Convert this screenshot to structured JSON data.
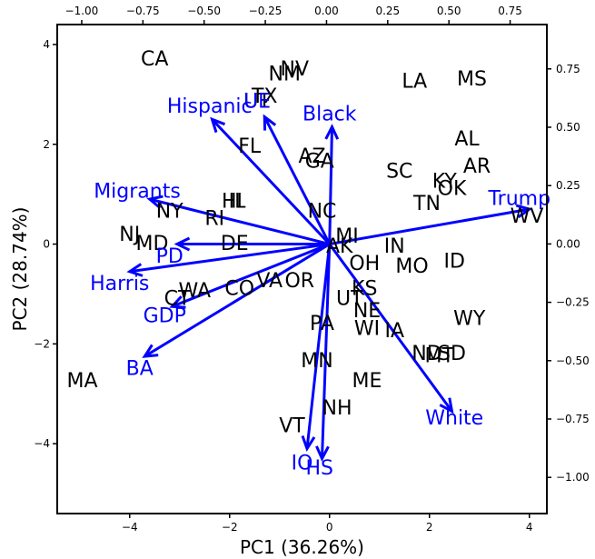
{
  "chart_data": {
    "type": "scatter",
    "subtype": "pca-biplot",
    "xlabel": "PC1  (36.26%)",
    "ylabel": "PC2  (28.74%)",
    "xlim": [
      -5.45,
      4.35
    ],
    "ylim": [
      -5.4,
      4.4
    ],
    "xticks": [
      -4,
      -2,
      0,
      2,
      4
    ],
    "yticks": [
      -4,
      -2,
      0,
      2,
      4
    ],
    "x2lim": [
      -1.1,
      0.9
    ],
    "y2lim": [
      -1.155,
      0.94
    ],
    "x2ticks": [
      -1.0,
      -0.75,
      -0.5,
      -0.25,
      0.0,
      0.25,
      0.5,
      0.75
    ],
    "y2ticks": [
      -1.0,
      -0.75,
      -0.5,
      -0.25,
      0.0,
      0.25,
      0.5,
      0.75
    ],
    "x2ticklabels": [
      "−1.00",
      "−0.75",
      "−0.50",
      "−0.25",
      "0.00",
      "0.25",
      "0.50",
      "0.75"
    ],
    "y2ticklabels": [
      "−1.00",
      "−0.75",
      "−0.50",
      "−0.25",
      "0.00",
      "0.25",
      "0.50",
      "0.75"
    ],
    "grid": false,
    "label_color": "#000000",
    "loading_color": "#0000ff",
    "states": [
      {
        "label": "CA",
        "x": -3.5,
        "y": 3.7
      },
      {
        "label": "NV",
        "x": -0.7,
        "y": 3.5
      },
      {
        "label": "NM",
        "x": -0.9,
        "y": 3.4
      },
      {
        "label": "TX",
        "x": -1.3,
        "y": 2.95
      },
      {
        "label": "UT",
        "x": -1.45,
        "y": 2.85
      },
      {
        "label": "LA",
        "x": 1.7,
        "y": 3.25
      },
      {
        "label": "MS",
        "x": 2.85,
        "y": 3.3
      },
      {
        "label": "FL",
        "x": -1.6,
        "y": 1.95
      },
      {
        "label": "AZ",
        "x": -0.35,
        "y": 1.75
      },
      {
        "label": "GA",
        "x": -0.2,
        "y": 1.65
      },
      {
        "label": "AL",
        "x": 2.75,
        "y": 2.1
      },
      {
        "label": "SC",
        "x": 1.4,
        "y": 1.45
      },
      {
        "label": "AR",
        "x": 2.95,
        "y": 1.55
      },
      {
        "label": "KY",
        "x": 2.3,
        "y": 1.25
      },
      {
        "label": "OK",
        "x": 2.45,
        "y": 1.1
      },
      {
        "label": "TN",
        "x": 1.95,
        "y": 0.8
      },
      {
        "label": "WV",
        "x": 3.95,
        "y": 0.55
      },
      {
        "label": "HI",
        "x": -1.95,
        "y": 0.85
      },
      {
        "label": "IL",
        "x": -1.85,
        "y": 0.85
      },
      {
        "label": "NY",
        "x": -3.2,
        "y": 0.65
      },
      {
        "label": "RI",
        "x": -2.3,
        "y": 0.5
      },
      {
        "label": "NC",
        "x": -0.15,
        "y": 0.65
      },
      {
        "label": "NJ",
        "x": -4,
        "y": 0.18
      },
      {
        "label": "MD",
        "x": -3.55,
        "y": 0.0
      },
      {
        "label": "DE",
        "x": -1.9,
        "y": 0.0
      },
      {
        "label": "MI",
        "x": 0.35,
        "y": 0.15
      },
      {
        "label": "AK",
        "x": 0.2,
        "y": -0.05
      },
      {
        "label": "IN",
        "x": 1.3,
        "y": -0.05
      },
      {
        "label": "ID",
        "x": 2.5,
        "y": -0.35
      },
      {
        "label": "OH",
        "x": 0.7,
        "y": -0.4
      },
      {
        "label": "MO",
        "x": 1.65,
        "y": -0.45
      },
      {
        "label": "CT",
        "x": -3.05,
        "y": -1.1
      },
      {
        "label": "WA",
        "x": -2.7,
        "y": -0.95
      },
      {
        "label": "CO",
        "x": -1.8,
        "y": -0.9
      },
      {
        "label": "VA",
        "x": -1.2,
        "y": -0.75
      },
      {
        "label": "OR",
        "x": -0.6,
        "y": -0.75
      },
      {
        "label": "KS",
        "x": 0.7,
        "y": -0.9
      },
      {
        "label": "UT",
        "x": 0.4,
        "y": -1.1
      },
      {
        "label": "NE",
        "x": 0.75,
        "y": -1.35
      },
      {
        "label": "WY",
        "x": 2.8,
        "y": -1.5
      },
      {
        "label": "PA",
        "x": -0.15,
        "y": -1.6
      },
      {
        "label": "WI",
        "x": 0.75,
        "y": -1.7
      },
      {
        "label": "IA",
        "x": 1.3,
        "y": -1.75
      },
      {
        "label": "ND",
        "x": 1.95,
        "y": -2.2
      },
      {
        "label": "MT",
        "x": 2.2,
        "y": -2.25
      },
      {
        "label": "SD",
        "x": 2.45,
        "y": -2.2
      },
      {
        "label": "MN",
        "x": -0.25,
        "y": -2.35
      },
      {
        "label": "ME",
        "x": 0.75,
        "y": -2.75
      },
      {
        "label": "MA",
        "x": -4.95,
        "y": -2.75
      },
      {
        "label": "NH",
        "x": 0.15,
        "y": -3.3
      },
      {
        "label": "VT",
        "x": -0.75,
        "y": -3.65
      }
    ],
    "loadings": [
      {
        "name": "Hispanic",
        "x": -2.35,
        "y": 2.5,
        "label_x": -2.4,
        "label_y": 2.75
      },
      {
        "name": "UE",
        "x": -1.3,
        "y": 2.55,
        "label_x": -1.45,
        "label_y": 2.85
      },
      {
        "name": "Black",
        "x": 0.05,
        "y": 2.35,
        "label_x": 0.0,
        "label_y": 2.6
      },
      {
        "name": "Migrants",
        "x": -3.6,
        "y": 0.9,
        "label_x": -3.85,
        "label_y": 1.05
      },
      {
        "name": "Trump",
        "x": 4.0,
        "y": 0.7,
        "label_x": 3.8,
        "label_y": 0.9
      },
      {
        "name": "PD",
        "x": -3.05,
        "y": 0.0,
        "label_x": -3.2,
        "label_y": -0.25
      },
      {
        "name": "Harris",
        "x": -4.0,
        "y": -0.55,
        "label_x": -4.2,
        "label_y": -0.8
      },
      {
        "name": "GDP",
        "x": -3.15,
        "y": -1.25,
        "label_x": -3.3,
        "label_y": -1.45
      },
      {
        "name": "BA",
        "x": -3.7,
        "y": -2.25,
        "label_x": -3.8,
        "label_y": -2.5
      },
      {
        "name": "White",
        "x": 2.45,
        "y": -3.35,
        "label_x": 2.5,
        "label_y": -3.5
      },
      {
        "name": "IO",
        "x": -0.45,
        "y": -4.1,
        "label_x": -0.55,
        "label_y": -4.4
      },
      {
        "name": "HS",
        "x": -0.15,
        "y": -4.3,
        "label_x": -0.2,
        "label_y": -4.5
      }
    ]
  }
}
